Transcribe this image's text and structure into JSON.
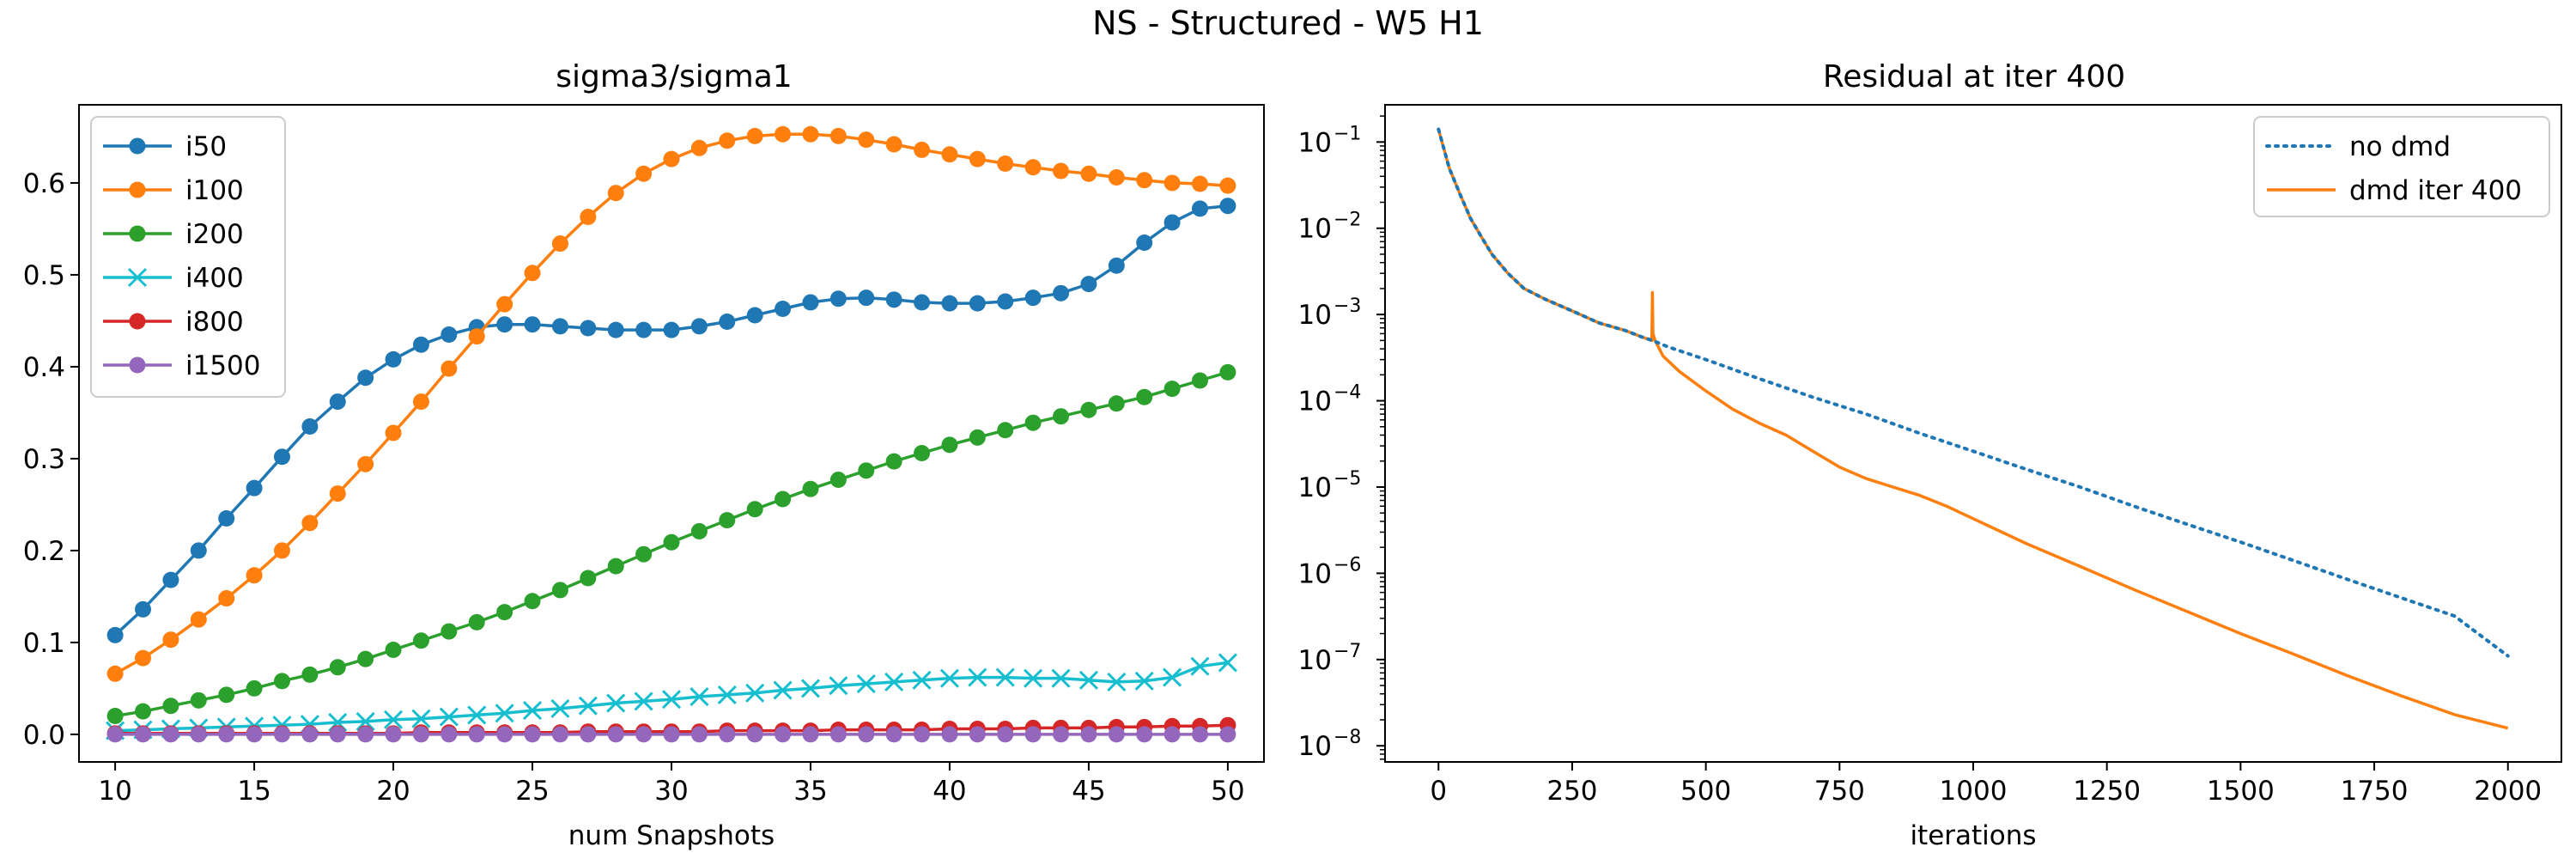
{
  "figure": {
    "title": "NS - Structured - W5 H1"
  },
  "chart_data": [
    {
      "type": "line",
      "title": "sigma3/sigma1",
      "xlabel": "num Snapshots",
      "ylabel": "",
      "xlim": [
        8.7,
        51.3
      ],
      "ylim": [
        -0.03,
        0.685
      ],
      "xticks": [
        10,
        15,
        20,
        25,
        30,
        35,
        40,
        45,
        50
      ],
      "yticks": [
        0.0,
        0.1,
        0.2,
        0.3,
        0.4,
        0.5,
        0.6
      ],
      "legend": "top-left",
      "x": [
        10,
        11,
        12,
        13,
        14,
        15,
        16,
        17,
        18,
        19,
        20,
        21,
        22,
        23,
        24,
        25,
        26,
        27,
        28,
        29,
        30,
        31,
        32,
        33,
        34,
        35,
        36,
        37,
        38,
        39,
        40,
        41,
        42,
        43,
        44,
        45,
        46,
        47,
        48,
        49,
        50
      ],
      "series": [
        {
          "name": "i50",
          "color": "#1f77b4",
          "marker": "circle",
          "values": [
            0.108,
            0.136,
            0.168,
            0.2,
            0.235,
            0.268,
            0.302,
            0.335,
            0.362,
            0.388,
            0.408,
            0.424,
            0.435,
            0.443,
            0.446,
            0.446,
            0.444,
            0.442,
            0.44,
            0.44,
            0.44,
            0.444,
            0.449,
            0.456,
            0.463,
            0.47,
            0.474,
            0.475,
            0.473,
            0.47,
            0.469,
            0.469,
            0.471,
            0.475,
            0.48,
            0.49,
            0.51,
            0.535,
            0.557,
            0.572,
            0.575
          ]
        },
        {
          "name": "i100",
          "color": "#ff7f0e",
          "marker": "circle",
          "values": [
            0.066,
            0.083,
            0.103,
            0.125,
            0.148,
            0.173,
            0.2,
            0.23,
            0.262,
            0.294,
            0.328,
            0.362,
            0.398,
            0.433,
            0.468,
            0.502,
            0.534,
            0.563,
            0.589,
            0.61,
            0.626,
            0.638,
            0.646,
            0.651,
            0.653,
            0.653,
            0.651,
            0.647,
            0.642,
            0.636,
            0.631,
            0.626,
            0.621,
            0.617,
            0.613,
            0.61,
            0.606,
            0.603,
            0.6,
            0.599,
            0.597
          ]
        },
        {
          "name": "i200",
          "color": "#2ca02c",
          "marker": "circle",
          "values": [
            0.02,
            0.025,
            0.031,
            0.037,
            0.043,
            0.05,
            0.058,
            0.065,
            0.073,
            0.082,
            0.092,
            0.102,
            0.112,
            0.122,
            0.133,
            0.145,
            0.157,
            0.17,
            0.183,
            0.196,
            0.209,
            0.221,
            0.233,
            0.245,
            0.256,
            0.267,
            0.277,
            0.287,
            0.297,
            0.306,
            0.315,
            0.323,
            0.331,
            0.339,
            0.346,
            0.353,
            0.36,
            0.367,
            0.376,
            0.385,
            0.394
          ]
        },
        {
          "name": "i400",
          "color": "#17becf",
          "marker": "x",
          "values": [
            0.004,
            0.005,
            0.006,
            0.007,
            0.008,
            0.009,
            0.01,
            0.011,
            0.013,
            0.014,
            0.016,
            0.017,
            0.019,
            0.021,
            0.023,
            0.026,
            0.028,
            0.031,
            0.034,
            0.036,
            0.038,
            0.041,
            0.043,
            0.045,
            0.048,
            0.05,
            0.053,
            0.055,
            0.057,
            0.059,
            0.061,
            0.062,
            0.062,
            0.061,
            0.061,
            0.059,
            0.057,
            0.058,
            0.062,
            0.074,
            0.078
          ]
        },
        {
          "name": "i800",
          "color": "#d62728",
          "marker": "circle",
          "values": [
            0.001,
            0.001,
            0.001,
            0.001,
            0.001,
            0.001,
            0.001,
            0.001,
            0.001,
            0.001,
            0.001,
            0.002,
            0.002,
            0.002,
            0.002,
            0.002,
            0.002,
            0.003,
            0.003,
            0.003,
            0.003,
            0.003,
            0.004,
            0.004,
            0.004,
            0.004,
            0.005,
            0.005,
            0.005,
            0.005,
            0.006,
            0.006,
            0.006,
            0.007,
            0.007,
            0.007,
            0.008,
            0.008,
            0.009,
            0.009,
            0.01
          ]
        },
        {
          "name": "i1500",
          "color": "#9467bd",
          "marker": "circle",
          "values": [
            0.0,
            0.0,
            0.0,
            0.0,
            0.0,
            0.0,
            0.0,
            0.0,
            0.0,
            0.0,
            0.0,
            0.0,
            0.0,
            0.0,
            0.0,
            0.0,
            0.0,
            0.0,
            0.0,
            0.0,
            0.0,
            0.0,
            0.0,
            0.0,
            0.0,
            0.0,
            0.0,
            0.0,
            0.0,
            0.0,
            0.0,
            0.0,
            0.0,
            0.0,
            0.0,
            0.0,
            0.0,
            0.0,
            0.0,
            0.0,
            0.0
          ]
        }
      ]
    },
    {
      "type": "line",
      "title": "Residual at iter 400",
      "xlabel": "iterations",
      "ylabel": "",
      "yscale": "log",
      "xlim": [
        -100,
        2100
      ],
      "ylim": [
        6.5e-09,
        0.27
      ],
      "xticks": [
        0,
        250,
        500,
        750,
        1000,
        1250,
        1500,
        1750,
        2000
      ],
      "yticks": [
        {
          "value": 0.1,
          "label": "10",
          "exp": "−1"
        },
        {
          "value": 0.01,
          "label": "10",
          "exp": "−2"
        },
        {
          "value": 0.001,
          "label": "10",
          "exp": "−3"
        },
        {
          "value": 0.0001,
          "label": "10",
          "exp": "−4"
        },
        {
          "value": 1e-05,
          "label": "10",
          "exp": "−5"
        },
        {
          "value": 1e-06,
          "label": "10",
          "exp": "−6"
        },
        {
          "value": 1e-07,
          "label": "10",
          "exp": "−7"
        },
        {
          "value": 1e-08,
          "label": "10",
          "exp": "−8"
        }
      ],
      "legend": "top-right",
      "series": [
        {
          "name": "no dmd",
          "color": "#1f77b4",
          "style": "dotted",
          "x": [
            0,
            20,
            40,
            60,
            80,
            100,
            130,
            160,
            200,
            250,
            300,
            350,
            380,
            400,
            430,
            500,
            600,
            700,
            800,
            900,
            1000,
            1100,
            1200,
            1300,
            1400,
            1500,
            1600,
            1700,
            1800,
            1900,
            2000
          ],
          "values": [
            0.14,
            0.05,
            0.025,
            0.013,
            0.008,
            0.005,
            0.003,
            0.002,
            0.0015,
            0.0011,
            0.0008,
            0.00065,
            0.00055,
            0.0005,
            0.00042,
            0.0003,
            0.00018,
            0.00011,
            7e-05,
            4.2e-05,
            2.6e-05,
            1.6e-05,
            1e-05,
            6e-06,
            3.7e-06,
            2.3e-06,
            1.4e-06,
            8.5e-07,
            5.2e-07,
            3.2e-07,
            1.1e-07
          ]
        },
        {
          "name": "dmd iter 400",
          "color": "#ff7f0e",
          "style": "solid",
          "x": [
            0,
            20,
            40,
            60,
            80,
            100,
            130,
            160,
            200,
            250,
            300,
            350,
            380,
            399,
            400,
            401,
            405,
            420,
            450,
            500,
            550,
            600,
            650,
            700,
            750,
            800,
            850,
            900,
            950,
            1000,
            1100,
            1200,
            1300,
            1400,
            1500,
            1600,
            1700,
            1800,
            1900,
            2000
          ],
          "values": [
            0.14,
            0.05,
            0.025,
            0.013,
            0.008,
            0.005,
            0.003,
            0.002,
            0.0015,
            0.0011,
            0.0008,
            0.00065,
            0.00055,
            0.0005,
            0.0018,
            0.0006,
            0.0005,
            0.00033,
            0.00022,
            0.00013,
            8e-05,
            5.5e-05,
            4e-05,
            2.6e-05,
            1.7e-05,
            1.25e-05,
            1e-05,
            8e-06,
            6e-06,
            4.3e-06,
            2.2e-06,
            1.2e-06,
            6.5e-07,
            3.6e-07,
            2e-07,
            1.15e-07,
            6.5e-08,
            3.8e-08,
            2.3e-08,
            1.6e-08
          ]
        }
      ]
    }
  ]
}
